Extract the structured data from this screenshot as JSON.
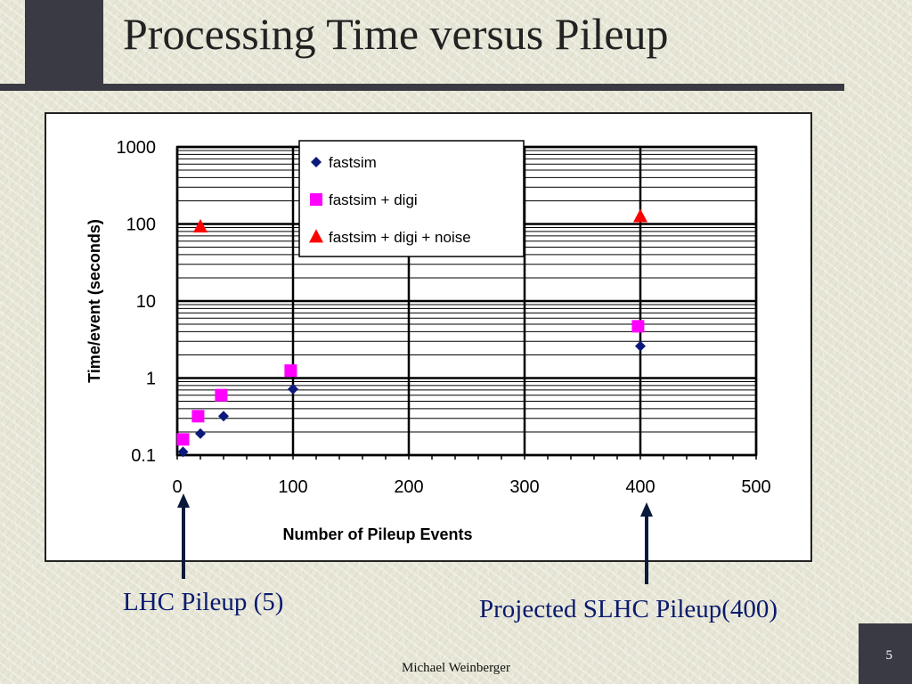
{
  "slide": {
    "title": "Processing Time versus Pileup",
    "footer_author": "Michael Weinberger",
    "page_number": "5",
    "frame_color": "#3a3a44",
    "callout_color": "#0a1a6e"
  },
  "annotations": {
    "lhc_label": "LHC Pileup (5)",
    "slhc_label": "Projected SLHC Pileup(400)"
  },
  "chart_data": {
    "type": "scatter",
    "title": "",
    "xlabel": "Number of Pileup Events",
    "ylabel": "Time/event (seconds)",
    "xlim": [
      0,
      500
    ],
    "ylim": [
      0.1,
      1000
    ],
    "yscale": "log",
    "x_ticks": [
      0,
      100,
      200,
      300,
      400,
      500
    ],
    "x_tick_labels": [
      "0",
      "100",
      "200",
      "300",
      "400",
      "500"
    ],
    "y_ticks": [
      0.1,
      1,
      10,
      100,
      1000
    ],
    "y_tick_labels": [
      "0.1",
      "1",
      "10",
      "100",
      "1000"
    ],
    "grid": true,
    "legend_position": "top-center",
    "series": [
      {
        "name": "fastsim",
        "marker": "diamond",
        "color": "#0b1a7a",
        "points": [
          [
            5,
            0.11
          ],
          [
            20,
            0.19
          ],
          [
            40,
            0.32
          ],
          [
            100,
            0.72
          ],
          [
            400,
            2.6
          ]
        ]
      },
      {
        "name": "fastsim + digi",
        "marker": "square",
        "color": "#ff00ff",
        "points": [
          [
            5,
            0.16
          ],
          [
            18,
            0.32
          ],
          [
            38,
            0.6
          ],
          [
            98,
            1.25
          ],
          [
            398,
            4.7
          ]
        ]
      },
      {
        "name": "fastsim + digi + noise",
        "marker": "triangle",
        "color": "#ff0000",
        "points": [
          [
            20,
            92
          ],
          [
            400,
            125
          ]
        ]
      }
    ]
  }
}
